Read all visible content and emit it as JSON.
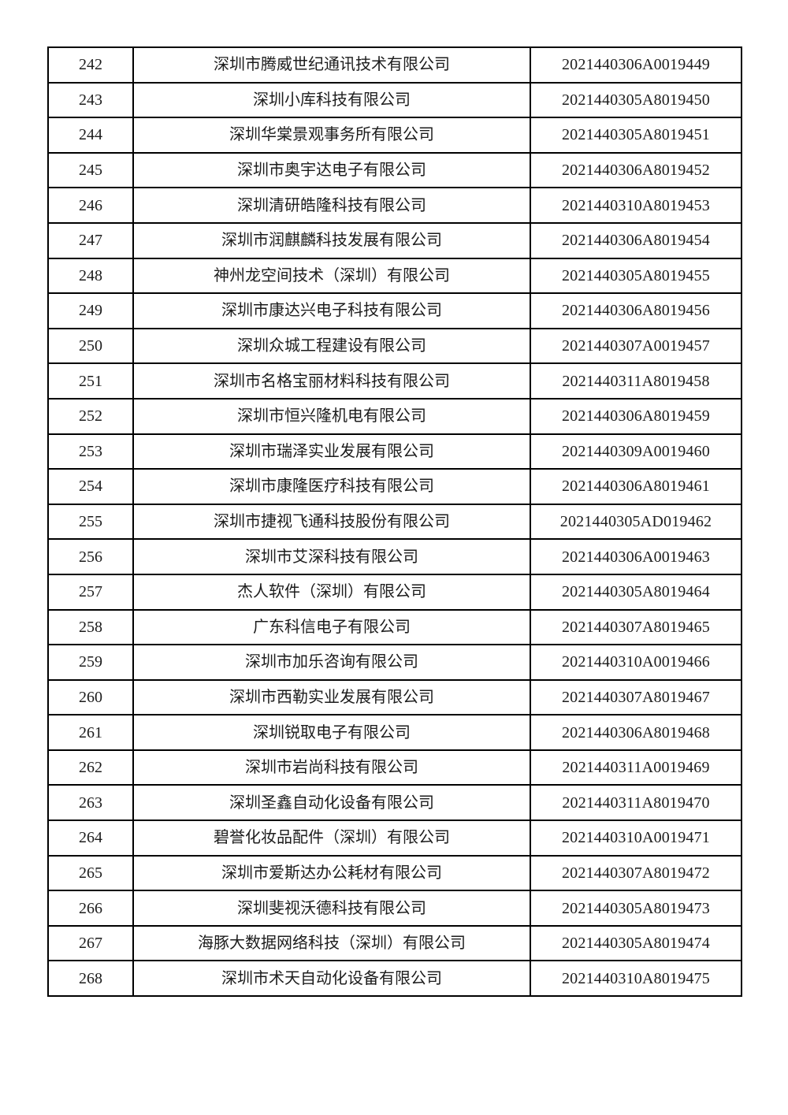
{
  "table": {
    "columns": [
      {
        "key": "index",
        "name": "row-index"
      },
      {
        "key": "company",
        "name": "company-name"
      },
      {
        "key": "code",
        "name": "registration-code"
      }
    ],
    "rows": [
      {
        "index": "242",
        "company": "深圳市腾威世纪通讯技术有限公司",
        "code": "2021440306A0019449"
      },
      {
        "index": "243",
        "company": "深圳小库科技有限公司",
        "code": "2021440305A8019450"
      },
      {
        "index": "244",
        "company": "深圳华棠景观事务所有限公司",
        "code": "2021440305A8019451"
      },
      {
        "index": "245",
        "company": "深圳市奥宇达电子有限公司",
        "code": "2021440306A8019452"
      },
      {
        "index": "246",
        "company": "深圳清研皓隆科技有限公司",
        "code": "2021440310A8019453"
      },
      {
        "index": "247",
        "company": "深圳市润麒麟科技发展有限公司",
        "code": "2021440306A8019454"
      },
      {
        "index": "248",
        "company": "神州龙空间技术（深圳）有限公司",
        "code": "2021440305A8019455"
      },
      {
        "index": "249",
        "company": "深圳市康达兴电子科技有限公司",
        "code": "2021440306A8019456"
      },
      {
        "index": "250",
        "company": "深圳众城工程建设有限公司",
        "code": "2021440307A0019457"
      },
      {
        "index": "251",
        "company": "深圳市名格宝丽材料科技有限公司",
        "code": "2021440311A8019458"
      },
      {
        "index": "252",
        "company": "深圳市恒兴隆机电有限公司",
        "code": "2021440306A8019459"
      },
      {
        "index": "253",
        "company": "深圳市瑞泽实业发展有限公司",
        "code": "2021440309A0019460"
      },
      {
        "index": "254",
        "company": "深圳市康隆医疗科技有限公司",
        "code": "2021440306A8019461"
      },
      {
        "index": "255",
        "company": "深圳市捷视飞通科技股份有限公司",
        "code": "2021440305AD019462"
      },
      {
        "index": "256",
        "company": "深圳市艾深科技有限公司",
        "code": "2021440306A0019463"
      },
      {
        "index": "257",
        "company": "杰人软件（深圳）有限公司",
        "code": "2021440305A8019464"
      },
      {
        "index": "258",
        "company": "广东科信电子有限公司",
        "code": "2021440307A8019465"
      },
      {
        "index": "259",
        "company": "深圳市加乐咨询有限公司",
        "code": "2021440310A0019466"
      },
      {
        "index": "260",
        "company": "深圳市西勒实业发展有限公司",
        "code": "2021440307A8019467"
      },
      {
        "index": "261",
        "company": "深圳锐取电子有限公司",
        "code": "2021440306A8019468"
      },
      {
        "index": "262",
        "company": "深圳市岩尚科技有限公司",
        "code": "2021440311A0019469"
      },
      {
        "index": "263",
        "company": "深圳圣鑫自动化设备有限公司",
        "code": "2021440311A8019470"
      },
      {
        "index": "264",
        "company": "碧誉化妆品配件（深圳）有限公司",
        "code": "2021440310A0019471"
      },
      {
        "index": "265",
        "company": "深圳市爱斯达办公耗材有限公司",
        "code": "2021440307A8019472"
      },
      {
        "index": "266",
        "company": "深圳斐视沃德科技有限公司",
        "code": "2021440305A8019473"
      },
      {
        "index": "267",
        "company": "海豚大数据网络科技（深圳）有限公司",
        "code": "2021440305A8019474"
      },
      {
        "index": "268",
        "company": "深圳市术天自动化设备有限公司",
        "code": "2021440310A8019475"
      }
    ],
    "colors": {
      "border": "#000000",
      "text": "#1c1c1c",
      "background": "#ffffff"
    }
  }
}
